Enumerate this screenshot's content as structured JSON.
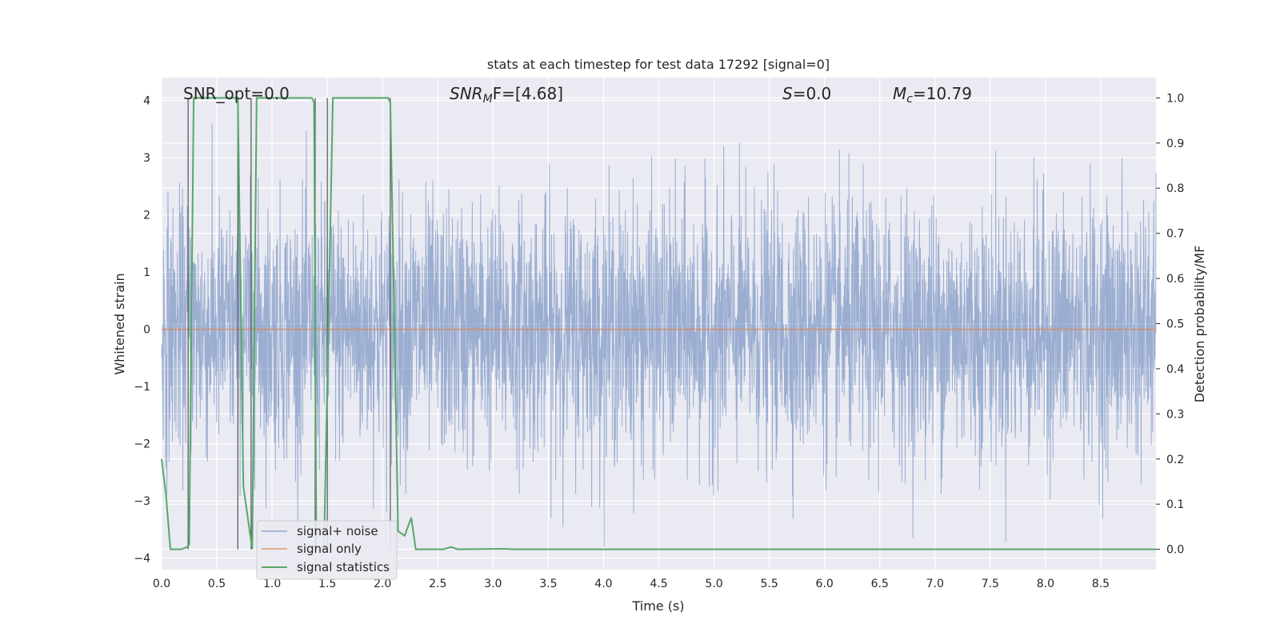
{
  "chart_data": {
    "type": "line",
    "title": "stats at each timestep for test data 17292 [signal=0]",
    "xlabel": "Time (s)",
    "ylabel": "Whitened strain",
    "ylabel_right": "Detection probability/MF",
    "xlim": [
      0,
      9
    ],
    "ylim": [
      -4.2,
      4.4
    ],
    "ylim_right": [
      -0.045,
      1.045
    ],
    "x_ticks": [
      "0.0",
      "0.5",
      "1.0",
      "1.5",
      "2.0",
      "2.5",
      "3.0",
      "3.5",
      "4.0",
      "4.5",
      "5.0",
      "5.5",
      "6.0",
      "6.5",
      "7.0",
      "7.5",
      "8.0",
      "8.5"
    ],
    "y_ticks": [
      "4",
      "3",
      "2",
      "1",
      "0",
      "−1",
      "−2",
      "−3",
      "−4"
    ],
    "y_ticks_right": [
      "1.0",
      "0.9",
      "0.8",
      "0.7",
      "0.6",
      "0.5",
      "0.4",
      "0.3",
      "0.2",
      "0.1",
      "0.0"
    ],
    "grid": true,
    "legend_position": "lower-left",
    "annotations": {
      "snr_opt": "SNR_opt=0.0",
      "snr_mf_prefix": "SNR",
      "snr_mf_sub": "M",
      "snr_mf_rest": "F=[4.68]",
      "s_label": "S",
      "s_value": "=0.0",
      "mc_label": "M",
      "mc_sub": "c",
      "mc_value": "=10.79"
    },
    "series": [
      {
        "name": "signal+ noise",
        "color": "#4c72b0",
        "description": "dense whitened-strain noise, amplitude roughly within ±3.8",
        "noise_envelope": 3.8
      },
      {
        "name": "signal only",
        "color": "#dd8452",
        "x": [
          0,
          9
        ],
        "y": [
          0,
          0
        ]
      },
      {
        "name": "signal statistics",
        "color": "#55a868",
        "axis": "right",
        "x": [
          0.0,
          0.04,
          0.08,
          0.18,
          0.23,
          0.25,
          0.29,
          0.31,
          0.67,
          0.69,
          0.74,
          0.82,
          0.86,
          0.88,
          1.36,
          1.38,
          1.4,
          1.47,
          1.55,
          1.57,
          2.05,
          2.07,
          2.14,
          2.2,
          2.26,
          2.3,
          2.55,
          2.62,
          2.68,
          3.1,
          3.2,
          9.0
        ],
        "y": [
          0.2,
          0.12,
          0.0,
          0.0,
          0.005,
          0.01,
          1.0,
          1.0,
          1.0,
          1.0,
          0.14,
          0.0,
          1.0,
          1.0,
          1.0,
          0.99,
          0.0,
          0.0,
          1.0,
          1.0,
          1.0,
          0.99,
          0.04,
          0.03,
          0.07,
          0.0,
          0.0,
          0.005,
          0.0,
          0.001,
          0.0,
          0.0
        ]
      }
    ],
    "vertical_markers_x": [
      0.24,
      0.69,
      0.81,
      1.39,
      1.5,
      2.07
    ]
  }
}
